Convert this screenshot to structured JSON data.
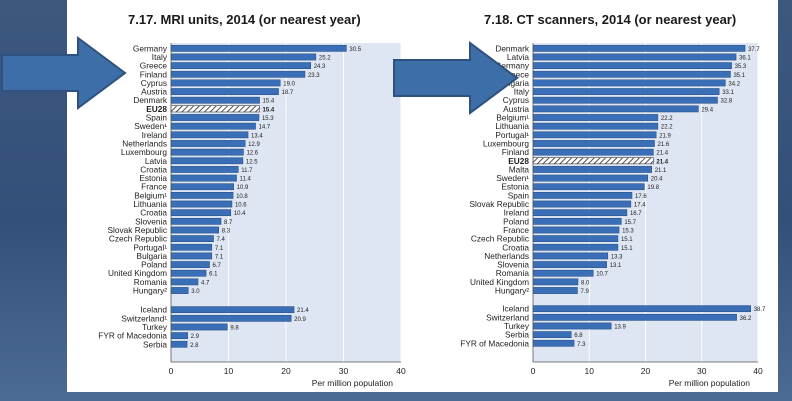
{
  "colors": {
    "bar": "#3a6fb8",
    "bar_border": "#22497f",
    "plot_bg": "#dde6f2",
    "hatch": "#222222",
    "arrow_fill": "#3e6ea8",
    "arrow_stroke": "#2e527d"
  },
  "chart_data": [
    {
      "id": "mri",
      "type": "bar",
      "orientation": "horizontal",
      "title": "7.17.  MRI units, 2014 (or nearest year)",
      "xlabel": "Per million population",
      "xlim": [
        0,
        40
      ],
      "xticks": [
        0,
        10,
        20,
        30,
        40
      ],
      "grid": true,
      "groups": [
        {
          "categories": [
            "Germany",
            "Italy",
            "Greece",
            "Finland",
            "Cyprus",
            "Austria",
            "Denmark",
            "EU28",
            "Spain",
            "Sweden¹",
            "Ireland",
            "Netherlands",
            "Luxembourg",
            "Latvia",
            "Croatia",
            "Estonia",
            "France",
            "Belgium¹",
            "Lithuania",
            "Croatia",
            "Slovenia",
            "Slovak Republic",
            "Czech Republic",
            "Portugal¹",
            "Bulgaria",
            "Poland",
            "United Kingdom",
            "Romania",
            "Hungary²"
          ],
          "values": [
            30.5,
            25.2,
            24.3,
            23.3,
            19.0,
            18.7,
            15.4,
            15.4,
            15.3,
            14.7,
            13.4,
            12.9,
            12.6,
            12.5,
            11.7,
            11.4,
            10.9,
            10.8,
            10.6,
            10.4,
            8.7,
            8.3,
            7.4,
            7.1,
            7.1,
            6.7,
            6.1,
            4.7,
            3.0
          ],
          "labels": [
            "30.5",
            "25.2",
            "24.3",
            "23.3",
            "19.0",
            "18.7",
            "15.4",
            "15.4",
            "15.3",
            "14.7",
            "13.4",
            "12.9",
            "12.6",
            "12.5",
            "11.7",
            "11.4",
            "10.9",
            "10.8",
            "10.6",
            "10.4",
            "8.7",
            "8.3",
            "7.4",
            "7.1",
            "7.1",
            "6.7",
            "6.1",
            "4.7",
            "3.0"
          ],
          "highlight": "EU28"
        },
        {
          "categories": [
            "Iceland",
            "Switzerland¹",
            "Turkey",
            "FYR of Macedonia",
            "Serbia"
          ],
          "values": [
            21.4,
            20.9,
            9.8,
            2.9,
            2.8
          ],
          "labels": [
            "21.4",
            "20.9",
            "9.8",
            "2.9",
            "2.8"
          ]
        }
      ]
    },
    {
      "id": "ct",
      "type": "bar",
      "orientation": "horizontal",
      "title": "7.18.  CT scanners, 2014 (or nearest year)",
      "xlabel": "Per million population",
      "xlim": [
        0,
        40
      ],
      "xticks": [
        0,
        10,
        20,
        30,
        40
      ],
      "grid": true,
      "groups": [
        {
          "categories": [
            "Denmark",
            "Latvia",
            "Germany",
            "Greece",
            "Bulgaria",
            "Italy",
            "Cyprus",
            "Austria",
            "Belgium¹",
            "Lithuania",
            "Portugal¹",
            "Luxembourg",
            "Finland",
            "EU28",
            "Malta",
            "Sweden¹",
            "Estonia",
            "Spain",
            "Slovak Republic",
            "Ireland",
            "Poland",
            "France",
            "Czech Republic",
            "Croatia",
            "Netherlands",
            "Slovenia",
            "Romania",
            "United Kingdom",
            "Hungary²"
          ],
          "values": [
            37.7,
            36.1,
            35.3,
            35.1,
            34.2,
            33.1,
            32.8,
            29.4,
            22.2,
            22.2,
            21.9,
            21.6,
            21.4,
            21.4,
            21.1,
            20.4,
            19.8,
            17.6,
            17.4,
            16.7,
            15.7,
            15.3,
            15.1,
            15.1,
            13.3,
            13.1,
            10.7,
            8.0,
            7.9
          ],
          "labels": [
            "37.7",
            "36.1",
            "35.3",
            "35.1",
            "34.2",
            "33.1",
            "32.8",
            "29.4",
            "22.2",
            "22.2",
            "21.9",
            "21.6",
            "21.4",
            "21.4",
            "21.1",
            "20.4",
            "19.8",
            "17.6",
            "17.4",
            "16.7",
            "15.7",
            "15.3",
            "15.1",
            "15.1",
            "13.3",
            "13.1",
            "10.7",
            "8.0",
            "7.9"
          ],
          "highlight": "EU28"
        },
        {
          "categories": [
            "Iceland",
            "Switzerland",
            "Turkey",
            "Serbia",
            "FYR of Macedonia"
          ],
          "values": [
            38.7,
            36.2,
            13.9,
            6.8,
            7.3
          ],
          "labels": [
            "38.7",
            "36.2",
            "13.9",
            "6.8",
            "7.3"
          ]
        }
      ]
    }
  ]
}
